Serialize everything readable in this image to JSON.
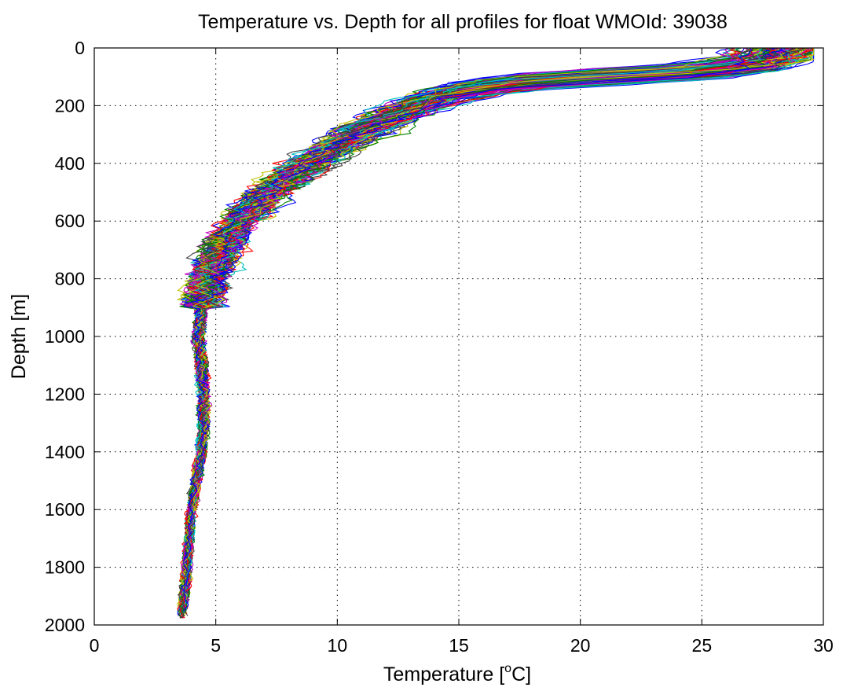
{
  "chart_data": {
    "type": "line",
    "title": "Temperature vs. Depth for all profiles for float WMOId: 39038",
    "xlabel": "Temperature [",
    "xlabel_sup": "o",
    "xlabel_suffix": "C]",
    "ylabel": "Depth [m]",
    "xlim": [
      0,
      30
    ],
    "ylim": [
      0,
      2000
    ],
    "y_reversed": true,
    "x_ticks": [
      "0",
      "5",
      "10",
      "15",
      "20",
      "25",
      "30"
    ],
    "y_ticks": [
      "0",
      "200",
      "400",
      "600",
      "800",
      "1000",
      "1200",
      "1400",
      "1600",
      "1800",
      "2000"
    ],
    "grid": true,
    "legend": "none",
    "series_colors": [
      "#0000ff",
      "#008000",
      "#ff0000",
      "#00bfbf",
      "#bf00bf",
      "#bfbf00",
      "#404040"
    ],
    "mean_profile": {
      "depth": [
        0,
        50,
        80,
        100,
        120,
        150,
        200,
        250,
        300,
        400,
        500,
        600,
        700,
        800,
        900,
        1000,
        1100,
        1200,
        1300,
        1400,
        1500,
        1600,
        1700,
        1800,
        1900,
        1970
      ],
      "temperature": [
        28.3,
        27.6,
        25.0,
        21.0,
        17.5,
        15.0,
        13.2,
        12.0,
        10.8,
        8.8,
        7.2,
        6.0,
        5.2,
        4.7,
        4.4,
        4.3,
        4.4,
        4.5,
        4.5,
        4.4,
        4.2,
        4.0,
        3.9,
        3.8,
        3.7,
        3.6
      ]
    },
    "profile_count": 120
  }
}
